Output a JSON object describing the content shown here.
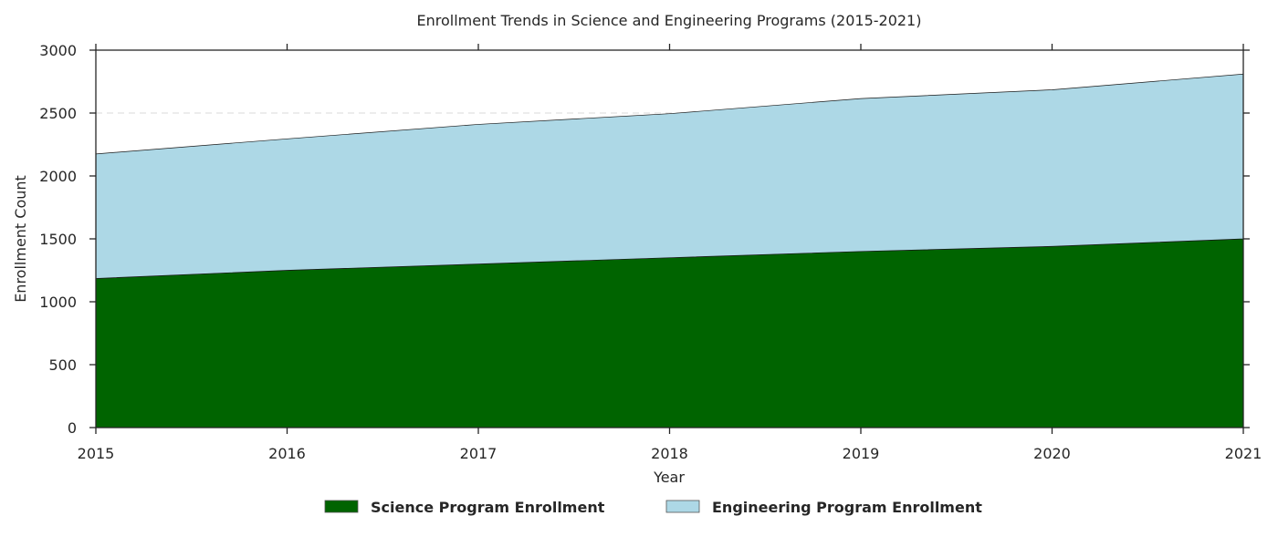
{
  "chart_data": {
    "type": "area",
    "stacked": true,
    "title": "Enrollment Trends in Science and Engineering Programs (2015-2021)",
    "xlabel": "Year",
    "ylabel": "Enrollment Count",
    "x": [
      "2015",
      "2016",
      "2017",
      "2018",
      "2019",
      "2020",
      "2021"
    ],
    "xlim": [
      2015,
      2021
    ],
    "ylim": [
      0,
      3000
    ],
    "yticks": [
      "0",
      "500",
      "1000",
      "1500",
      "2000",
      "2500",
      "3000"
    ],
    "series": [
      {
        "name": "Science Program Enrollment",
        "values": [
          1185,
          1250,
          1300,
          1350,
          1400,
          1440,
          1500
        ],
        "color": "#006400"
      },
      {
        "name": "Engineering Program Enrollment",
        "values": [
          990,
          1045,
          1110,
          1145,
          1215,
          1245,
          1310
        ],
        "color": "#add8e6"
      }
    ],
    "grid": {
      "y": "dashed",
      "x": false
    },
    "legend_position": "bottom-center"
  }
}
